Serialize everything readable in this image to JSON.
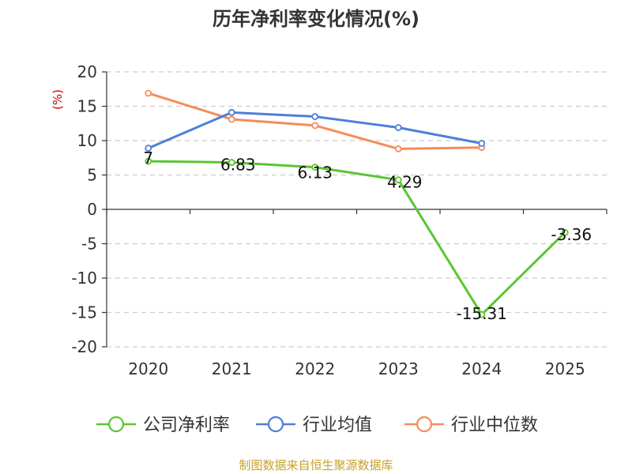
{
  "chart_data": {
    "type": "line",
    "title": "历年净利率变化情况(%)",
    "ylabel": "(%)",
    "xlabel": "",
    "categories": [
      "2020",
      "2021",
      "2022",
      "2023",
      "2024",
      "2025"
    ],
    "ylim": [
      -20,
      20
    ],
    "yticks": [
      20,
      15,
      10,
      5,
      0,
      -5,
      -10,
      -15,
      -20
    ],
    "grid": true,
    "legend": "bottom",
    "series": [
      {
        "name": "公司净利率",
        "color": "#5ac62f",
        "values": [
          7,
          6.83,
          6.13,
          4.29,
          -15.31,
          -3.36
        ],
        "labels": [
          "7",
          "6.83",
          "6.13",
          "4.29",
          "-15.31",
          "-3.36"
        ]
      },
      {
        "name": "行业均值",
        "color": "#4e7fd9",
        "values": [
          8.9,
          14.1,
          13.5,
          11.9,
          9.6,
          null
        ]
      },
      {
        "name": "行业中位数",
        "color": "#f58c5a",
        "values": [
          16.9,
          13.1,
          12.2,
          8.8,
          9.0,
          null
        ]
      }
    ]
  },
  "source": "制图数据来自恒生聚源数据库",
  "colors": {
    "title": "#333333",
    "unit_label": "#cc0000",
    "source": "#c9a227",
    "axis": "#333333",
    "grid": "#cccccc"
  }
}
